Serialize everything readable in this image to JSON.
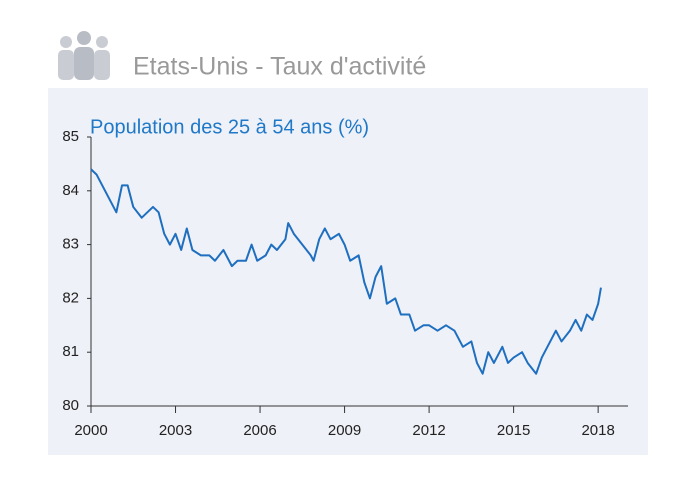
{
  "chart_data": {
    "type": "line",
    "title": "Etats-Unis - Taux d'activité",
    "subtitle": "Population des 25 à 54 ans (%)",
    "xlim": [
      2000,
      2019.06
    ],
    "xticks": [
      2000,
      2003,
      2006,
      2009,
      2012,
      2015,
      2018
    ],
    "ylim": [
      80,
      85
    ],
    "yticks": [
      80,
      81,
      82,
      83,
      84,
      85
    ],
    "grid": false,
    "x": [
      2000.0,
      2000.2,
      2000.4,
      2000.6,
      2000.9,
      2001.1,
      2001.3,
      2001.5,
      2001.8,
      2002.0,
      2002.2,
      2002.4,
      2002.6,
      2002.8,
      2003.0,
      2003.2,
      2003.4,
      2003.6,
      2003.9,
      2004.2,
      2004.4,
      2004.7,
      2005.0,
      2005.2,
      2005.5,
      2005.7,
      2005.9,
      2006.2,
      2006.4,
      2006.6,
      2006.9,
      2007.0,
      2007.2,
      2007.5,
      2007.8,
      2007.9,
      2008.1,
      2008.3,
      2008.5,
      2008.8,
      2009.0,
      2009.2,
      2009.5,
      2009.7,
      2009.9,
      2010.1,
      2010.3,
      2010.5,
      2010.8,
      2011.0,
      2011.3,
      2011.5,
      2011.8,
      2012.0,
      2012.3,
      2012.6,
      2012.9,
      2013.2,
      2013.5,
      2013.7,
      2013.9,
      2014.1,
      2014.3,
      2014.6,
      2014.8,
      2015.0,
      2015.3,
      2015.5,
      2015.8,
      2016.0,
      2016.3,
      2016.5,
      2016.7,
      2017.0,
      2017.2,
      2017.4,
      2017.6,
      2017.8,
      2018.0,
      2018.1
    ],
    "series": [
      {
        "color": "#1f6fc0",
        "values": [
          84.4,
          84.3,
          84.1,
          83.9,
          83.6,
          84.1,
          84.1,
          83.7,
          83.5,
          83.6,
          83.7,
          83.6,
          83.2,
          83.0,
          83.2,
          82.9,
          83.3,
          82.9,
          82.8,
          82.8,
          82.7,
          82.9,
          82.6,
          82.7,
          82.7,
          83.0,
          82.7,
          82.8,
          83.0,
          82.9,
          83.1,
          83.4,
          83.2,
          83.0,
          82.8,
          82.7,
          83.1,
          83.3,
          83.1,
          83.2,
          83.0,
          82.7,
          82.8,
          82.3,
          82.0,
          82.4,
          82.6,
          81.9,
          82.0,
          81.7,
          81.7,
          81.4,
          81.5,
          81.5,
          81.4,
          81.5,
          81.4,
          81.1,
          81.2,
          80.8,
          80.6,
          81.0,
          80.8,
          81.1,
          80.8,
          80.9,
          81.0,
          80.8,
          80.6,
          80.9,
          81.2,
          81.4,
          81.2,
          81.4,
          81.6,
          81.4,
          81.7,
          81.6,
          81.9,
          82.2
        ]
      }
    ]
  }
}
